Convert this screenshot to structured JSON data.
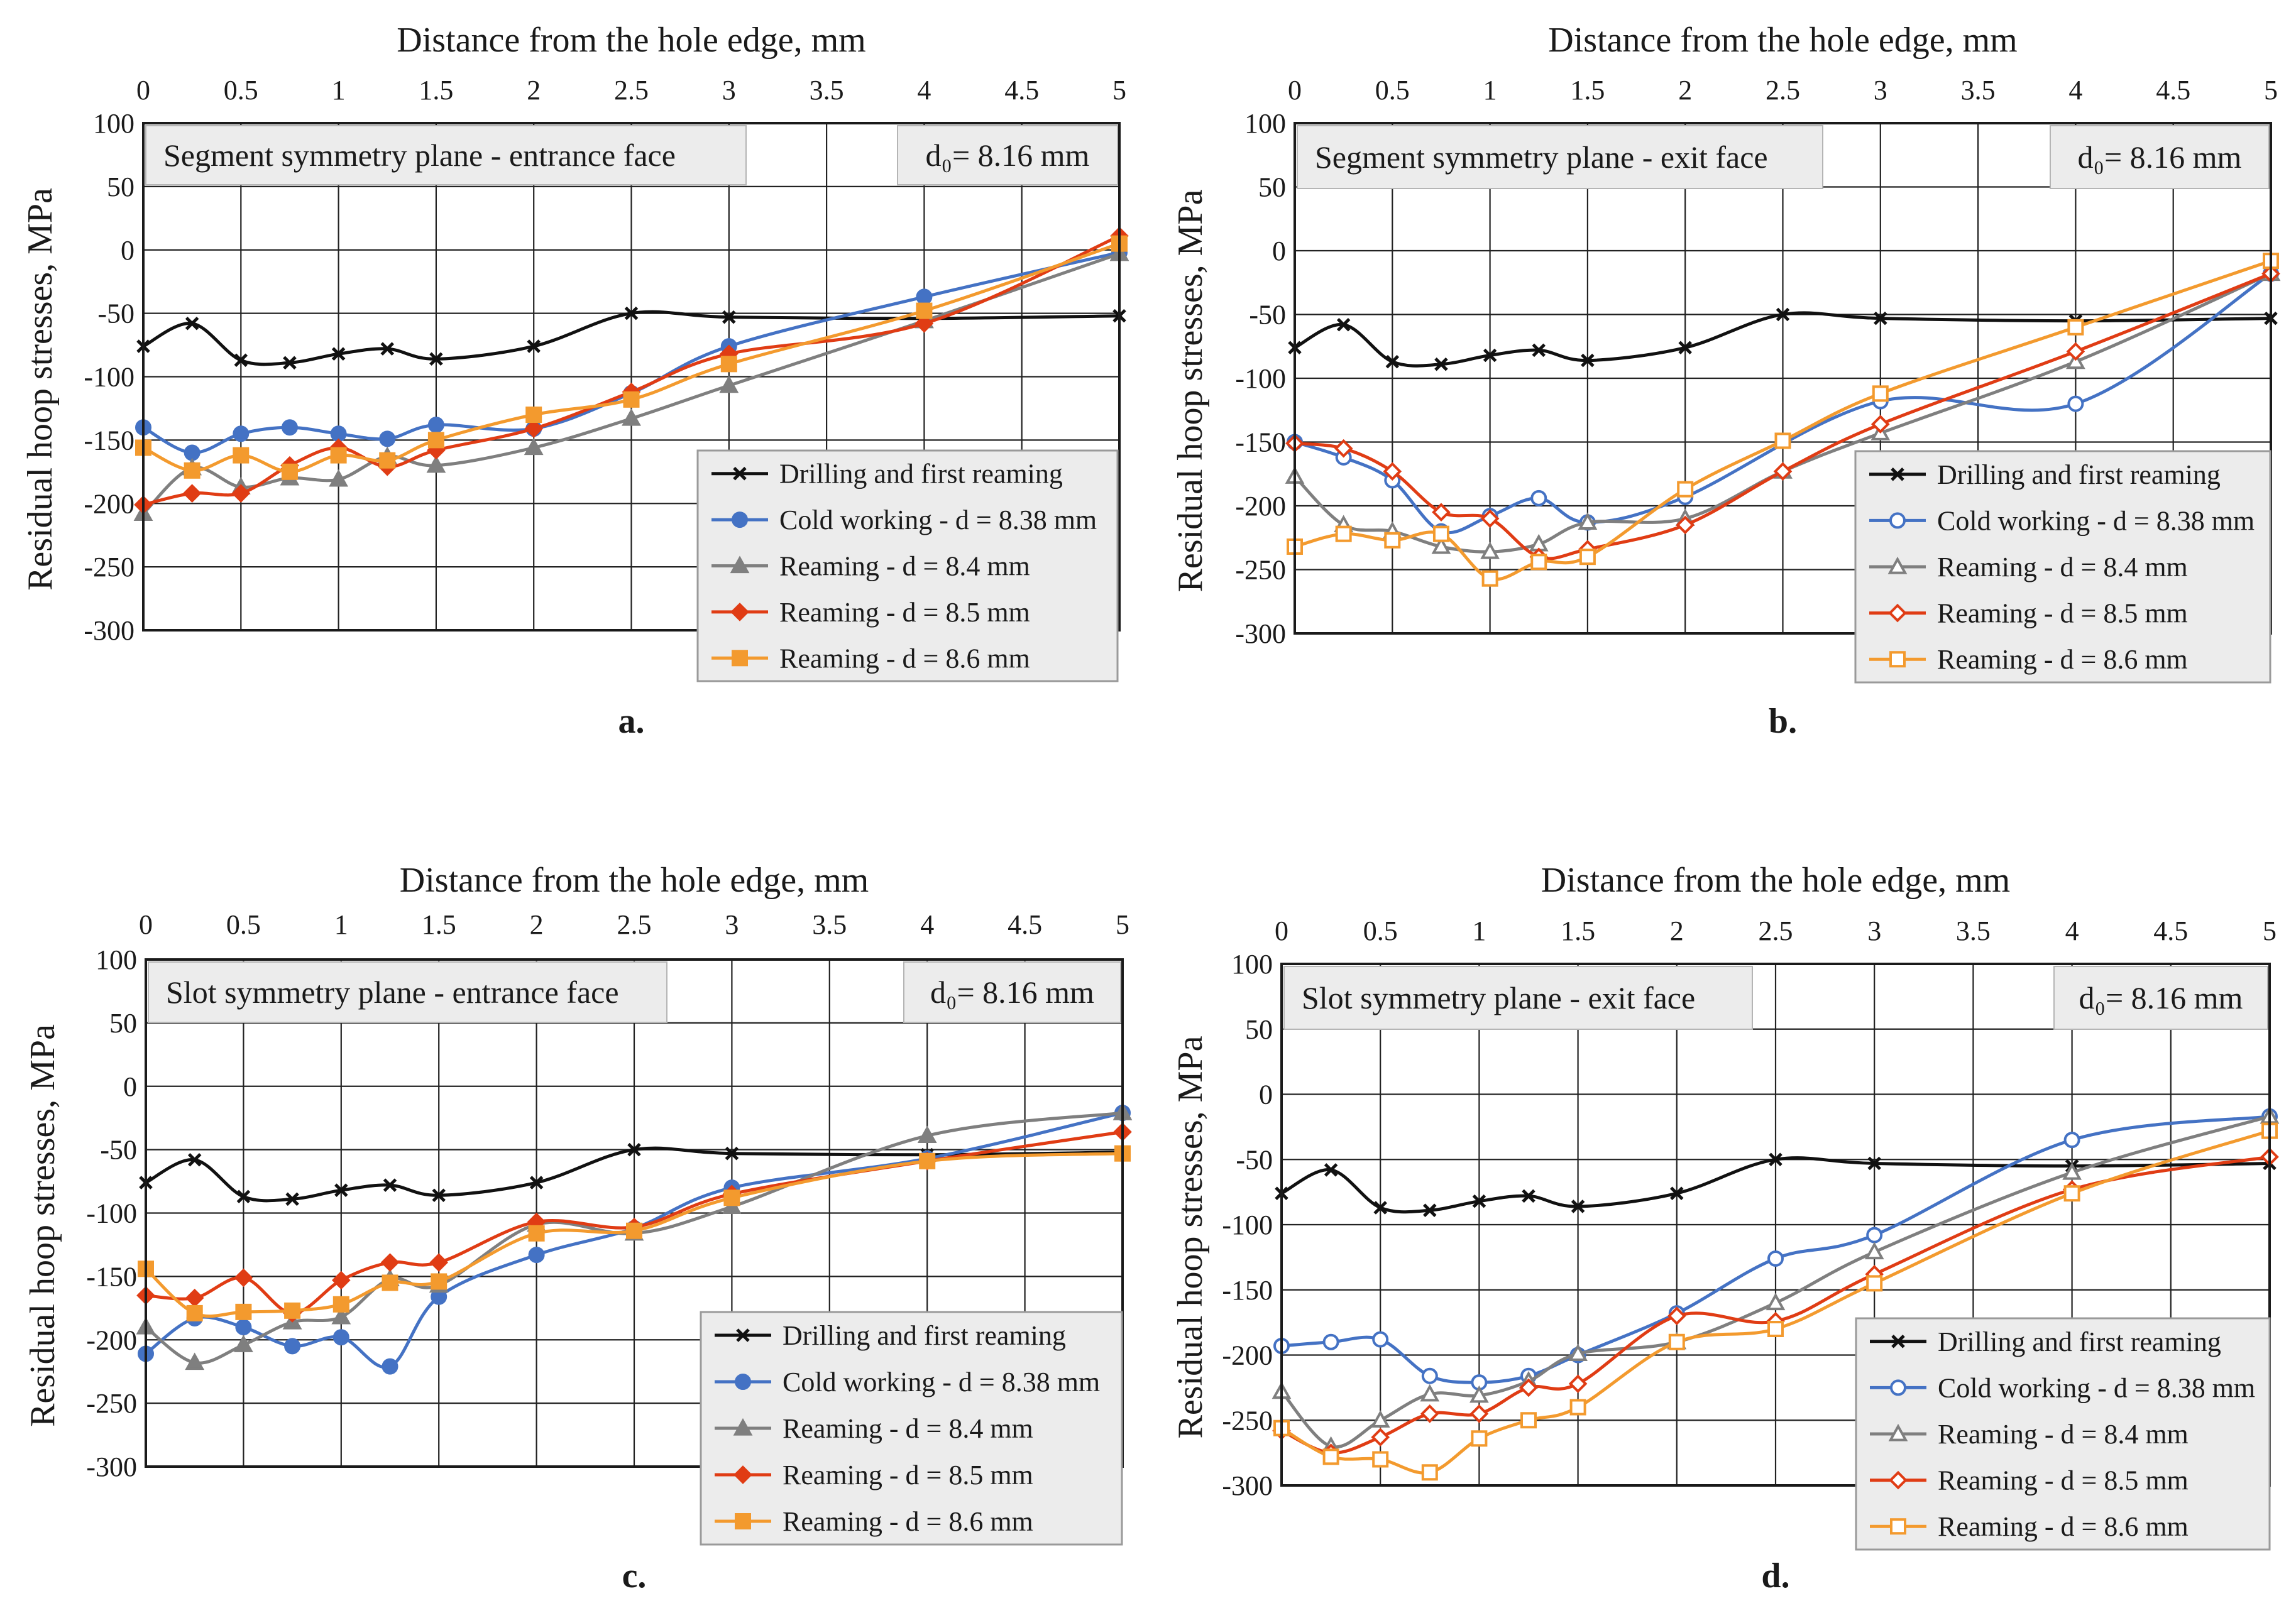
{
  "figure": {
    "x_axis_title": "Distance from the hole edge, mm",
    "y_axis_title": "Residual hoop stresses, MPa"
  },
  "colors": {
    "drilling": "#111111",
    "cold_working": "#4472c4",
    "reaming_84": "#7f7f7f",
    "reaming_85": "#e03c14",
    "reaming_86": "#f39a2e",
    "frame": "#1a1a1a",
    "label_box": "#ececec"
  },
  "chart_data": [
    {
      "panel": "a.",
      "type": "line",
      "title": "Segment symmetry plane - entrance face",
      "note": "d₀= 8.16 mm",
      "marker_fill": "filled",
      "xlabel": "Distance from the hole edge, mm",
      "ylabel": "Residual hoop stresses, MPa",
      "xlim": [
        0,
        5
      ],
      "ylim": [
        -300,
        100
      ],
      "xticks": [
        "0",
        "0.5",
        "1",
        "1.5",
        "2",
        "2.5",
        "3",
        "3.5",
        "4",
        "4.5",
        "5"
      ],
      "yticks": [
        "100",
        "50",
        "0",
        "-50",
        "-100",
        "-150",
        "-200",
        "-250",
        "-300"
      ],
      "series": [
        {
          "name": "Drilling and first reaming",
          "marker": "x",
          "color": "drilling",
          "x": [
            0,
            0.25,
            0.5,
            0.75,
            1,
            1.25,
            1.5,
            2,
            2.5,
            3,
            4,
            5
          ],
          "y": [
            -76,
            -58,
            -87,
            -89,
            -82,
            -78,
            -86,
            -76,
            -50,
            -53,
            -54,
            -52
          ]
        },
        {
          "name": "Cold working - d = 8.38 mm",
          "marker": "circle",
          "color": "cold_working",
          "x": [
            0,
            0.25,
            0.5,
            0.75,
            1,
            1.25,
            1.5,
            2,
            2.5,
            3,
            4,
            5
          ],
          "y": [
            -140,
            -160,
            -145,
            -140,
            -145,
            -149,
            -138,
            -141,
            -113,
            -76,
            -37,
            -2
          ]
        },
        {
          "name": "Reaming - d = 8.4 mm",
          "marker": "triangle",
          "color": "reaming_84",
          "x": [
            0,
            0.25,
            0.5,
            0.75,
            1,
            1.25,
            1.5,
            2,
            2.5,
            3,
            4,
            5
          ],
          "y": [
            -208,
            -172,
            -187,
            -180,
            -181,
            -163,
            -170,
            -156,
            -133,
            -107,
            -56,
            -3
          ]
        },
        {
          "name": "Reaming - d = 8.5 mm",
          "marker": "diamond",
          "color": "reaming_85",
          "x": [
            0,
            0.25,
            0.5,
            0.75,
            1,
            1.25,
            1.5,
            2,
            2.5,
            3,
            4,
            5
          ],
          "y": [
            -201,
            -192,
            -192,
            -170,
            -156,
            -171,
            -158,
            -141,
            -112,
            -82,
            -58,
            11
          ]
        },
        {
          "name": "Reaming - d = 8.6 mm",
          "marker": "square",
          "color": "reaming_86",
          "x": [
            0,
            0.25,
            0.5,
            0.75,
            1,
            1.25,
            1.5,
            2,
            2.5,
            3,
            4,
            5
          ],
          "y": [
            -156,
            -174,
            -162,
            -175,
            -162,
            -166,
            -150,
            -130,
            -118,
            -90,
            -48,
            5
          ]
        }
      ]
    },
    {
      "panel": "b.",
      "type": "line",
      "title": "Segment symmetry plane - exit face",
      "note": "d₀= 8.16 mm",
      "marker_fill": "open",
      "xlabel": "Distance from the hole edge, mm",
      "ylabel": "Residual hoop stresses, MPa",
      "xlim": [
        0,
        5
      ],
      "ylim": [
        -300,
        100
      ],
      "xticks": [
        "0",
        "0.5",
        "1",
        "1.5",
        "2",
        "2.5",
        "3",
        "3.5",
        "4",
        "4.5",
        "5"
      ],
      "yticks": [
        "100",
        "50",
        "0",
        "-50",
        "-100",
        "-150",
        "-200",
        "-250",
        "-300"
      ],
      "series": [
        {
          "name": "Drilling and first reaming",
          "marker": "x",
          "color": "drilling",
          "x": [
            0,
            0.25,
            0.5,
            0.75,
            1,
            1.25,
            1.5,
            2,
            2.5,
            3,
            4,
            5
          ],
          "y": [
            -76,
            -58,
            -87,
            -89,
            -82,
            -78,
            -86,
            -76,
            -50,
            -53,
            -55,
            -53
          ]
        },
        {
          "name": "Cold working - d = 8.38 mm",
          "marker": "circle",
          "color": "cold_working",
          "x": [
            0,
            0.25,
            0.5,
            0.75,
            1,
            1.25,
            1.5,
            2,
            3,
            4,
            5
          ],
          "y": [
            -150,
            -162,
            -180,
            -220,
            -208,
            -194,
            -213,
            -193,
            -118,
            -120,
            -18
          ]
        },
        {
          "name": "Reaming - d = 8.4 mm",
          "marker": "triangle",
          "color": "reaming_84",
          "x": [
            0,
            0.25,
            0.5,
            0.75,
            1,
            1.25,
            1.5,
            2,
            2.5,
            3,
            4,
            5
          ],
          "y": [
            -177,
            -215,
            -220,
            -232,
            -236,
            -230,
            -213,
            -210,
            -173,
            -143,
            -87,
            -18
          ]
        },
        {
          "name": "Reaming - d = 8.5 mm",
          "marker": "diamond",
          "color": "reaming_85",
          "x": [
            0,
            0.25,
            0.5,
            0.75,
            1,
            1.25,
            1.5,
            2,
            2.5,
            3,
            4,
            5
          ],
          "y": [
            -151,
            -155,
            -173,
            -205,
            -210,
            -240,
            -234,
            -215,
            -173,
            -136,
            -79,
            -18
          ]
        },
        {
          "name": "Reaming - d = 8.6 mm",
          "marker": "square",
          "color": "reaming_86",
          "x": [
            0,
            0.25,
            0.5,
            0.75,
            1,
            1.25,
            1.5,
            2,
            2.5,
            3,
            4,
            5
          ],
          "y": [
            -232,
            -222,
            -227,
            -222,
            -257,
            -244,
            -240,
            -187,
            -149,
            -112,
            -60,
            -8
          ]
        }
      ]
    },
    {
      "panel": "c.",
      "type": "line",
      "title": "Slot symmetry plane - entrance face",
      "note": "d₀= 8.16 mm",
      "marker_fill": "filled",
      "xlabel": "Distance from the hole edge, mm",
      "ylabel": "Residual hoop stresses, MPa",
      "xlim": [
        0,
        5
      ],
      "ylim": [
        -300,
        100
      ],
      "xticks": [
        "0",
        "0.5",
        "1",
        "1.5",
        "2",
        "2.5",
        "3",
        "3.5",
        "4",
        "4.5",
        "5"
      ],
      "yticks": [
        "100",
        "50",
        "0",
        "-50",
        "-100",
        "-150",
        "-200",
        "-250",
        "-300"
      ],
      "series": [
        {
          "name": "Drilling and first reaming",
          "marker": "x",
          "color": "drilling",
          "x": [
            0,
            0.25,
            0.5,
            0.75,
            1,
            1.25,
            1.5,
            2,
            2.5,
            3,
            4,
            5
          ],
          "y": [
            -76,
            -58,
            -87,
            -89,
            -82,
            -78,
            -86,
            -76,
            -50,
            -53,
            -54,
            -52
          ]
        },
        {
          "name": "Cold working - d = 8.38 mm",
          "marker": "circle",
          "color": "cold_working",
          "x": [
            0,
            0.25,
            0.5,
            0.75,
            1,
            1.25,
            1.5,
            2,
            2.5,
            3,
            4,
            5
          ],
          "y": [
            -211,
            -183,
            -190,
            -205,
            -198,
            -221,
            -166,
            -133,
            -112,
            -80,
            -57,
            -21
          ]
        },
        {
          "name": "Reaming - d = 8.4 mm",
          "marker": "triangle",
          "color": "reaming_84",
          "x": [
            0,
            0.25,
            0.5,
            0.75,
            1,
            1.25,
            1.5,
            2,
            2.5,
            3,
            4,
            5
          ],
          "y": [
            -190,
            -218,
            -204,
            -186,
            -182,
            -152,
            -157,
            -109,
            -116,
            -95,
            -39,
            -21
          ]
        },
        {
          "name": "Reaming - d = 8.5 mm",
          "marker": "diamond",
          "color": "reaming_85",
          "x": [
            0,
            0.25,
            0.5,
            0.75,
            1,
            1.25,
            1.5,
            2,
            2.5,
            3,
            4,
            5
          ],
          "y": [
            -165,
            -167,
            -151,
            -179,
            -153,
            -139,
            -139,
            -107,
            -111,
            -85,
            -59,
            -36
          ]
        },
        {
          "name": "Reaming - d = 8.6 mm",
          "marker": "square",
          "color": "reaming_86",
          "x": [
            0,
            0.25,
            0.5,
            0.75,
            1,
            1.25,
            1.5,
            2,
            2.5,
            3,
            4,
            5
          ],
          "y": [
            -144,
            -179,
            -178,
            -177,
            -172,
            -155,
            -154,
            -116,
            -114,
            -88,
            -59,
            -53
          ]
        }
      ]
    },
    {
      "panel": "d.",
      "type": "line",
      "title": "Slot symmetry plane - exit face",
      "note": "d₀= 8.16 mm",
      "marker_fill": "open",
      "xlabel": "Distance from the hole edge, mm",
      "ylabel": "Residual hoop stresses, MPa",
      "xlim": [
        0,
        5
      ],
      "ylim": [
        -300,
        100
      ],
      "xticks": [
        "0",
        "0.5",
        "1",
        "1.5",
        "2",
        "2.5",
        "3",
        "3.5",
        "4",
        "4.5",
        "5"
      ],
      "yticks": [
        "100",
        "50",
        "0",
        "-50",
        "-100",
        "-150",
        "-200",
        "-250",
        "-300"
      ],
      "series": [
        {
          "name": "Drilling and first reaming",
          "marker": "x",
          "color": "drilling",
          "x": [
            0,
            0.25,
            0.5,
            0.75,
            1,
            1.25,
            1.5,
            2,
            2.5,
            3,
            4,
            5
          ],
          "y": [
            -76,
            -58,
            -87,
            -89,
            -82,
            -78,
            -86,
            -76,
            -50,
            -53,
            -55,
            -53
          ]
        },
        {
          "name": "Cold working - d = 8.38 mm",
          "marker": "circle",
          "color": "cold_working",
          "x": [
            0,
            0.25,
            0.5,
            0.75,
            1,
            1.25,
            1.5,
            2,
            2.5,
            3,
            4,
            5
          ],
          "y": [
            -193,
            -190,
            -188,
            -216,
            -221,
            -216,
            -200,
            -168,
            -126,
            -108,
            -35,
            -17
          ]
        },
        {
          "name": "Reaming - d = 8.4 mm",
          "marker": "triangle",
          "color": "reaming_84",
          "x": [
            0,
            0.25,
            0.5,
            0.75,
            1,
            1.25,
            1.5,
            2,
            2.5,
            3,
            4,
            5
          ],
          "y": [
            -228,
            -270,
            -250,
            -230,
            -231,
            -220,
            -199,
            -190,
            -160,
            -121,
            -60,
            -17
          ]
        },
        {
          "name": "Reaming - d = 8.5 mm",
          "marker": "diamond",
          "color": "reaming_85",
          "x": [
            0,
            0.25,
            0.5,
            0.75,
            1,
            1.25,
            1.5,
            2,
            2.5,
            3,
            4,
            5
          ],
          "y": [
            -258,
            -275,
            -263,
            -245,
            -245,
            -225,
            -222,
            -170,
            -174,
            -138,
            -73,
            -48
          ]
        },
        {
          "name": "Reaming - d = 8.6 mm",
          "marker": "square",
          "color": "reaming_86",
          "x": [
            0,
            0.25,
            0.5,
            0.75,
            1,
            1.25,
            1.5,
            2,
            2.5,
            3,
            4,
            5
          ],
          "y": [
            -256,
            -278,
            -280,
            -290,
            -264,
            -250,
            -240,
            -190,
            -180,
            -145,
            -76,
            -28
          ]
        }
      ]
    }
  ]
}
